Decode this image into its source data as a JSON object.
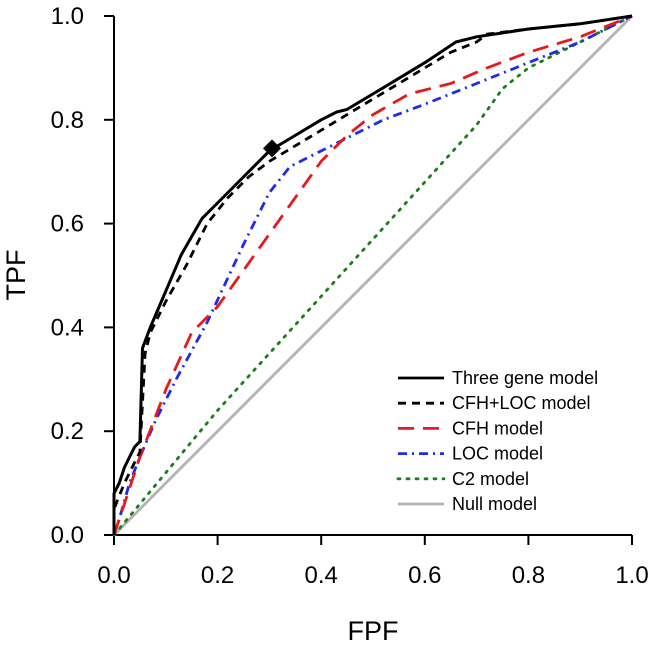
{
  "chart_data": {
    "type": "line",
    "xlabel": "FPF",
    "ylabel": "TPF",
    "xlim": [
      0,
      1
    ],
    "ylim": [
      0,
      1
    ],
    "x_ticks": [
      "0.0",
      "0.2",
      "0.4",
      "0.6",
      "0.8",
      "1.0"
    ],
    "y_ticks": [
      "0.0",
      "0.2",
      "0.4",
      "0.6",
      "0.8",
      "1.0"
    ],
    "grid": false,
    "legend_position": "bottom-right",
    "series": [
      {
        "name": "Three gene model",
        "color": "#000000",
        "dash": "solid",
        "points": [
          [
            0,
            0
          ],
          [
            0,
            0.08
          ],
          [
            0.01,
            0.1
          ],
          [
            0.02,
            0.13
          ],
          [
            0.03,
            0.15
          ],
          [
            0.04,
            0.17
          ],
          [
            0.05,
            0.18
          ],
          [
            0.055,
            0.36
          ],
          [
            0.07,
            0.4
          ],
          [
            0.1,
            0.47
          ],
          [
            0.13,
            0.54
          ],
          [
            0.17,
            0.61
          ],
          [
            0.22,
            0.66
          ],
          [
            0.26,
            0.7
          ],
          [
            0.3,
            0.74
          ],
          [
            0.35,
            0.77
          ],
          [
            0.4,
            0.8
          ],
          [
            0.43,
            0.815
          ],
          [
            0.45,
            0.82
          ],
          [
            0.5,
            0.85
          ],
          [
            0.55,
            0.88
          ],
          [
            0.6,
            0.91
          ],
          [
            0.66,
            0.95
          ],
          [
            0.7,
            0.96
          ],
          [
            0.8,
            0.975
          ],
          [
            0.9,
            0.985
          ],
          [
            1,
            1
          ]
        ]
      },
      {
        "name": "CFH+LOC model",
        "color": "#000000",
        "dash": "dashed",
        "points": [
          [
            0,
            0
          ],
          [
            0,
            0.05
          ],
          [
            0.02,
            0.1
          ],
          [
            0.04,
            0.14
          ],
          [
            0.05,
            0.16
          ],
          [
            0.06,
            0.35
          ],
          [
            0.07,
            0.39
          ],
          [
            0.1,
            0.45
          ],
          [
            0.14,
            0.52
          ],
          [
            0.18,
            0.6
          ],
          [
            0.22,
            0.65
          ],
          [
            0.26,
            0.69
          ],
          [
            0.3,
            0.72
          ],
          [
            0.35,
            0.75
          ],
          [
            0.4,
            0.78
          ],
          [
            0.45,
            0.81
          ],
          [
            0.5,
            0.84
          ],
          [
            0.55,
            0.87
          ],
          [
            0.6,
            0.9
          ],
          [
            0.65,
            0.93
          ],
          [
            0.7,
            0.95
          ],
          [
            0.72,
            0.965
          ],
          [
            0.8,
            0.975
          ],
          [
            0.9,
            0.985
          ],
          [
            1,
            1
          ]
        ]
      },
      {
        "name": "CFH model",
        "color": "#e41a1c",
        "dash": "long-dash",
        "points": [
          [
            0,
            0
          ],
          [
            0.02,
            0.06
          ],
          [
            0.05,
            0.15
          ],
          [
            0.1,
            0.28
          ],
          [
            0.15,
            0.39
          ],
          [
            0.2,
            0.44
          ],
          [
            0.25,
            0.51
          ],
          [
            0.3,
            0.58
          ],
          [
            0.35,
            0.65
          ],
          [
            0.4,
            0.72
          ],
          [
            0.45,
            0.77
          ],
          [
            0.5,
            0.81
          ],
          [
            0.57,
            0.85
          ],
          [
            0.65,
            0.87
          ],
          [
            0.72,
            0.9
          ],
          [
            0.8,
            0.93
          ],
          [
            0.9,
            0.96
          ],
          [
            1,
            1
          ]
        ]
      },
      {
        "name": "LOC model",
        "color": "#1f2be8",
        "dash": "dash-dot",
        "points": [
          [
            0,
            0
          ],
          [
            0.01,
            0.03
          ],
          [
            0.03,
            0.1
          ],
          [
            0.05,
            0.15
          ],
          [
            0.08,
            0.22
          ],
          [
            0.12,
            0.3
          ],
          [
            0.18,
            0.41
          ],
          [
            0.25,
            0.56
          ],
          [
            0.3,
            0.66
          ],
          [
            0.34,
            0.71
          ],
          [
            0.4,
            0.74
          ],
          [
            0.46,
            0.77
          ],
          [
            0.52,
            0.8
          ],
          [
            0.6,
            0.83
          ],
          [
            0.7,
            0.87
          ],
          [
            0.8,
            0.91
          ],
          [
            0.9,
            0.95
          ],
          [
            1,
            1
          ]
        ]
      },
      {
        "name": "C2 model",
        "color": "#1a7f1a",
        "dash": "dotted",
        "points": [
          [
            0,
            0
          ],
          [
            0.05,
            0.06
          ],
          [
            0.1,
            0.12
          ],
          [
            0.2,
            0.24
          ],
          [
            0.3,
            0.35
          ],
          [
            0.4,
            0.46
          ],
          [
            0.5,
            0.57
          ],
          [
            0.6,
            0.68
          ],
          [
            0.7,
            0.79
          ],
          [
            0.75,
            0.86
          ],
          [
            0.8,
            0.9
          ],
          [
            0.9,
            0.95
          ],
          [
            1,
            1
          ]
        ]
      },
      {
        "name": "Null model",
        "color": "#b3b3b3",
        "dash": "solid",
        "points": [
          [
            0,
            0
          ],
          [
            1,
            1
          ]
        ]
      }
    ],
    "marker": {
      "shape": "diamond",
      "x": 0.305,
      "y": 0.745,
      "color": "#000000"
    }
  }
}
